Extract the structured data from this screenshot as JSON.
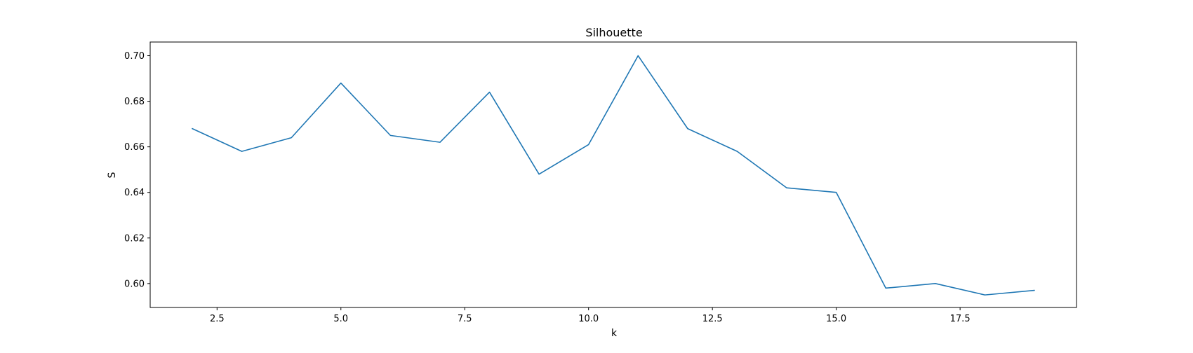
{
  "chart_data": {
    "type": "line",
    "title": "Silhouette",
    "xlabel": "k",
    "ylabel": "S",
    "xlim": [
      1.15,
      19.85
    ],
    "ylim": [
      0.5895,
      0.706
    ],
    "xticks": [
      2.5,
      5.0,
      7.5,
      10.0,
      12.5,
      15.0,
      17.5
    ],
    "xtick_labels": [
      "2.5",
      "5.0",
      "7.5",
      "10.0",
      "12.5",
      "15.0",
      "17.5"
    ],
    "yticks": [
      0.6,
      0.62,
      0.64,
      0.66,
      0.68,
      0.7
    ],
    "ytick_labels": [
      "0.60",
      "0.62",
      "0.64",
      "0.66",
      "0.68",
      "0.70"
    ],
    "grid": false,
    "series": [
      {
        "color": "#1f77b4",
        "x": [
          2,
          3,
          4,
          5,
          6,
          7,
          8,
          9,
          10,
          11,
          12,
          13,
          14,
          15,
          16,
          17,
          18,
          19
        ],
        "y": [
          0.668,
          0.658,
          0.664,
          0.688,
          0.665,
          0.662,
          0.684,
          0.648,
          0.661,
          0.7,
          0.668,
          0.658,
          0.642,
          0.64,
          0.598,
          0.6,
          0.595,
          0.597
        ]
      }
    ]
  }
}
